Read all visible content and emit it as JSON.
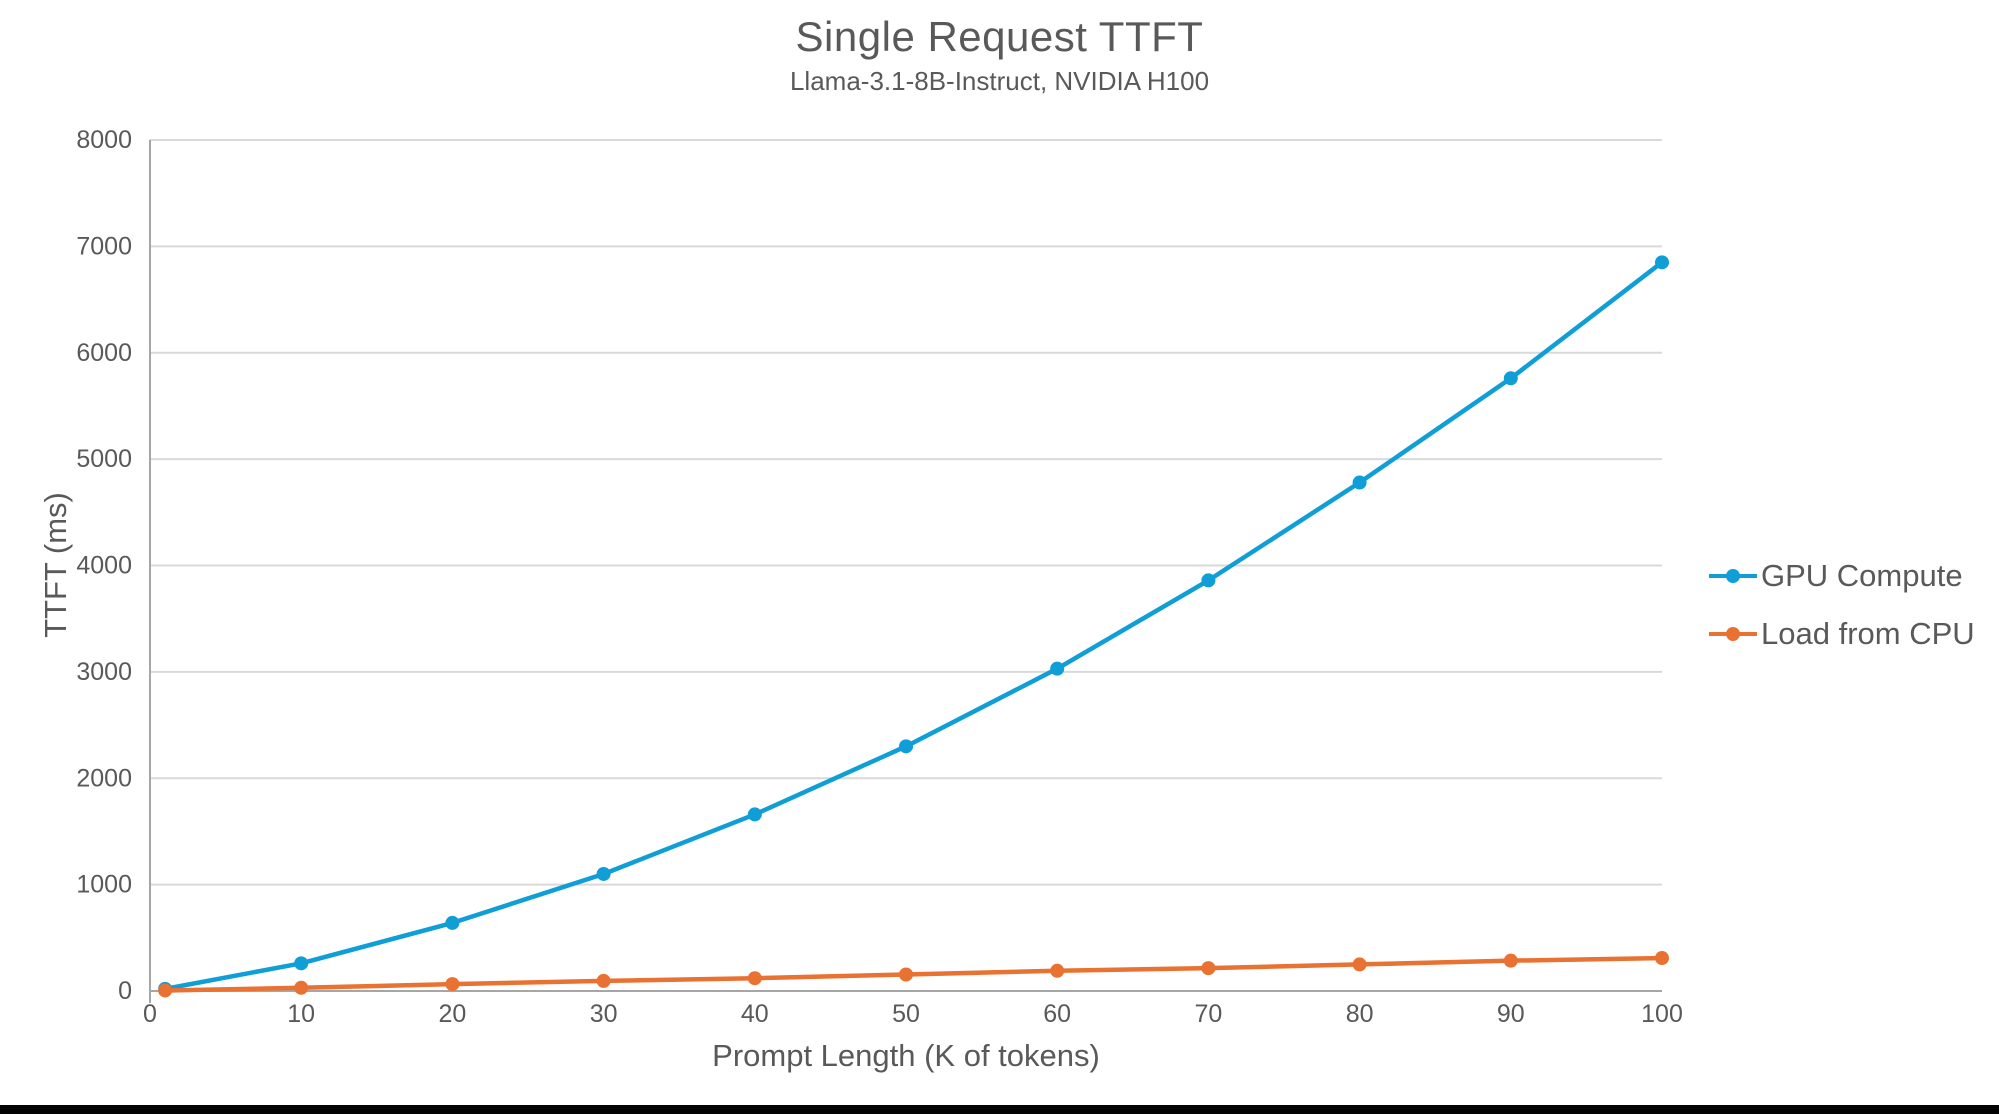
{
  "chart_data": {
    "type": "line",
    "title": "Single Request TTFT",
    "subtitle": "Llama-3.1-8B-Instruct, NVIDIA H100",
    "xlabel": "Prompt Length (K of tokens)",
    "ylabel": "TTFT (ms)",
    "x": [
      1,
      10,
      20,
      30,
      40,
      50,
      60,
      70,
      80,
      90,
      100
    ],
    "series": [
      {
        "name": "GPU Compute",
        "color": "#0F9ED5",
        "values": [
          20,
          260,
          640,
          1100,
          1660,
          2300,
          3030,
          3860,
          4780,
          5760,
          6850
        ]
      },
      {
        "name": "Load from CPU",
        "color": "#E97132",
        "values": [
          5,
          30,
          65,
          95,
          120,
          155,
          190,
          215,
          250,
          285,
          310
        ]
      }
    ],
    "xlim": [
      0,
      100
    ],
    "ylim": [
      0,
      8000
    ],
    "x_ticks": [
      "0",
      "10",
      "20",
      "30",
      "40",
      "50",
      "60",
      "70",
      "80",
      "90",
      "100"
    ],
    "y_ticks": [
      "0",
      "1000",
      "2000",
      "3000",
      "4000",
      "5000",
      "6000",
      "7000",
      "8000"
    ],
    "grid": "horizontal gridlines only",
    "legend_position": "right",
    "styles": {
      "text_color": "#595959",
      "gridline_color": "#D9D9D9",
      "axis_line_color": "#A6A6A6",
      "background": "#FFFFFF",
      "bottom_bar_color": "#030303"
    }
  }
}
